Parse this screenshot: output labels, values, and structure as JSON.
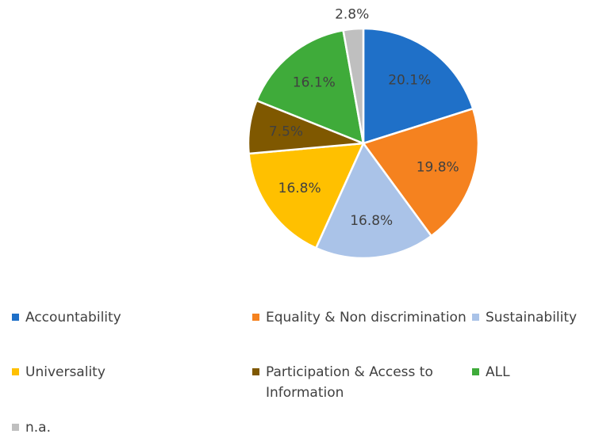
{
  "chart_data": {
    "type": "pie",
    "categories": [
      "Accountability",
      "Equality & Non discrimination",
      "Sustainability",
      "Universality",
      "Participation & Access to Information",
      "ALL",
      "n.a."
    ],
    "values": [
      20.1,
      19.8,
      16.8,
      16.8,
      7.5,
      16.1,
      2.8
    ],
    "value_labels": [
      "20.1%",
      "19.8%",
      "16.8%",
      "16.8%",
      "7.5%",
      "16.1%",
      "2.8%"
    ],
    "colors": [
      "#1f70c8",
      "#f5821f",
      "#aac3e8",
      "#ffc000",
      "#7f5800",
      "#3fab3a",
      "#bfbfbf"
    ],
    "legend": "bottom"
  }
}
